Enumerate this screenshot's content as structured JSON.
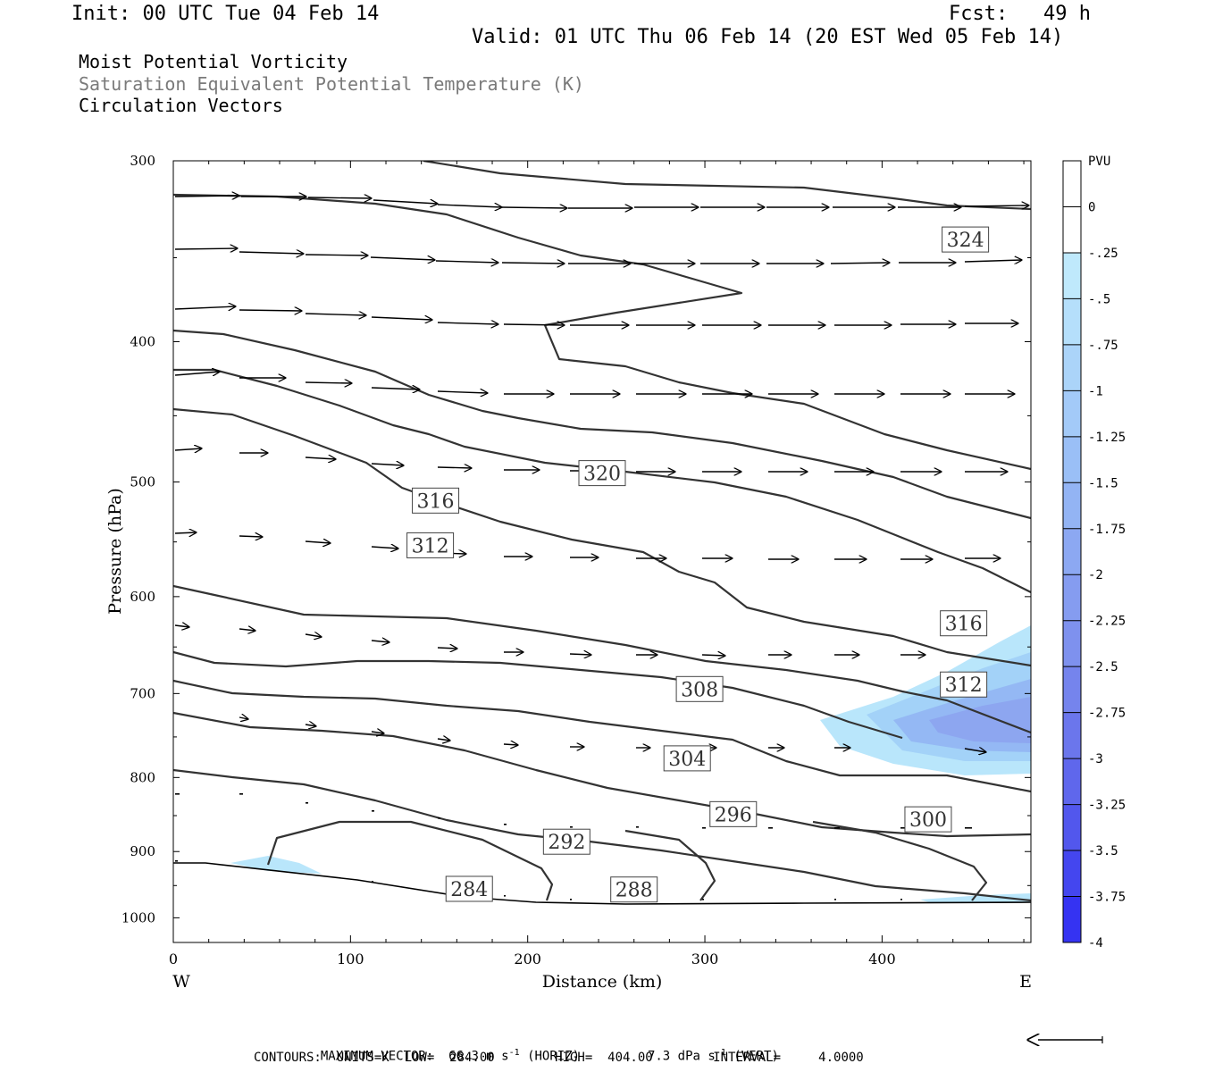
{
  "header": {
    "init": "Init: 00 UTC Tue 04 Feb 14",
    "fcst": "Fcst:   49 h",
    "valid": "Valid: 01 UTC Thu 06 Feb 14 (20 EST Wed 05 Feb 14)"
  },
  "fields": [
    "Moist Potential Vorticity",
    "Saturation Equivalent Potential Temperature (K)",
    "Circulation Vectors"
  ],
  "footer": {
    "max_vector_label": "MAXIMUM VECTOR:",
    "max_vector_horiz": "66.3 m s",
    "horiz_sup": "-1",
    "horiz_tag": "(HORIZ)",
    "max_vector_vert": "7.3 dPa s",
    "vert_sup": "-1",
    "vert_tag": "(VERT)",
    "contours_line": "CONTOURS:  UNITS=K  LOW=  284.00        HIGH=  404.00        INTERVAL=     4.0000"
  },
  "colors": {
    "contour": "#333333",
    "shade_light": "#b4e6fa",
    "shade_mid": "#9ec8f5",
    "shade_dark": "#8c9ef0"
  },
  "chart_data": {
    "type": "cross-section",
    "xlabel": "Distance (km)",
    "ylabel": "Pressure (hPa)",
    "xlim": [
      0,
      484
    ],
    "ylim": [
      1040,
      300
    ],
    "y_log_scale": true,
    "xticks": [
      "0",
      "100",
      "200",
      "300",
      "400"
    ],
    "x_ends": {
      "left": "W",
      "right": "E"
    },
    "yticks": [
      "300",
      "400",
      "500",
      "600",
      "700",
      "800",
      "900",
      "1000"
    ],
    "contour_labels": [
      {
        "text": "324",
        "x": 447,
        "p": 340
      },
      {
        "text": "320",
        "x": 242,
        "p": 493
      },
      {
        "text": "316",
        "x": 148,
        "p": 515
      },
      {
        "text": "312",
        "x": 145,
        "p": 553
      },
      {
        "text": "316",
        "x": 446,
        "p": 626
      },
      {
        "text": "312",
        "x": 446,
        "p": 690
      },
      {
        "text": "308",
        "x": 297,
        "p": 695
      },
      {
        "text": "304",
        "x": 290,
        "p": 776
      },
      {
        "text": "296",
        "x": 316,
        "p": 848
      },
      {
        "text": "300",
        "x": 426,
        "p": 855
      },
      {
        "text": "292",
        "x": 222,
        "p": 886
      },
      {
        "text": "284",
        "x": 167,
        "p": 955
      },
      {
        "text": "288",
        "x": 260,
        "p": 956
      }
    ],
    "colorbar": {
      "unit": "PVU",
      "levels": [
        "0",
        "-.25",
        "-.5",
        "-.75",
        "-1",
        "-1.25",
        "-1.5",
        "-1.75",
        "-2",
        "-2.25",
        "-2.5",
        "-2.75",
        "-3",
        "-3.25",
        "-3.5",
        "-3.75",
        "-4"
      ]
    }
  }
}
